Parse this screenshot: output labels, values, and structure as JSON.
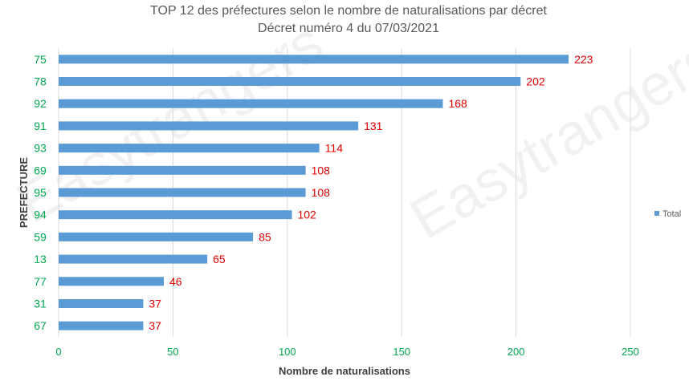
{
  "chart_data": {
    "type": "bar",
    "orientation": "horizontal",
    "title": "TOP 12 des préfectures selon le nombre de naturalisations par décret",
    "subtitle": "Décret numéro 4 du 07/03/2021",
    "categories": [
      "75",
      "78",
      "92",
      "91",
      "93",
      "69",
      "95",
      "94",
      "59",
      "13",
      "77",
      "31",
      "67"
    ],
    "series": [
      {
        "name": "Total",
        "values": [
          223,
          202,
          168,
          131,
          114,
          108,
          108,
          102,
          85,
          65,
          46,
          37,
          37
        ]
      }
    ],
    "xlabel": "Nombre de naturalisations",
    "ylabel": "PREFECTURE",
    "xlim": [
      0,
      250
    ],
    "xticks": [
      0,
      50,
      100,
      150,
      200,
      250
    ],
    "grid": "vertical",
    "legend": "right",
    "data_labels": true,
    "colors": {
      "bar": "#5b9bd5",
      "category_label": "#00a650",
      "data_label": "#e00000",
      "grid": "#d9d9d9"
    }
  },
  "watermark": {
    "text": "Easytrangers"
  }
}
